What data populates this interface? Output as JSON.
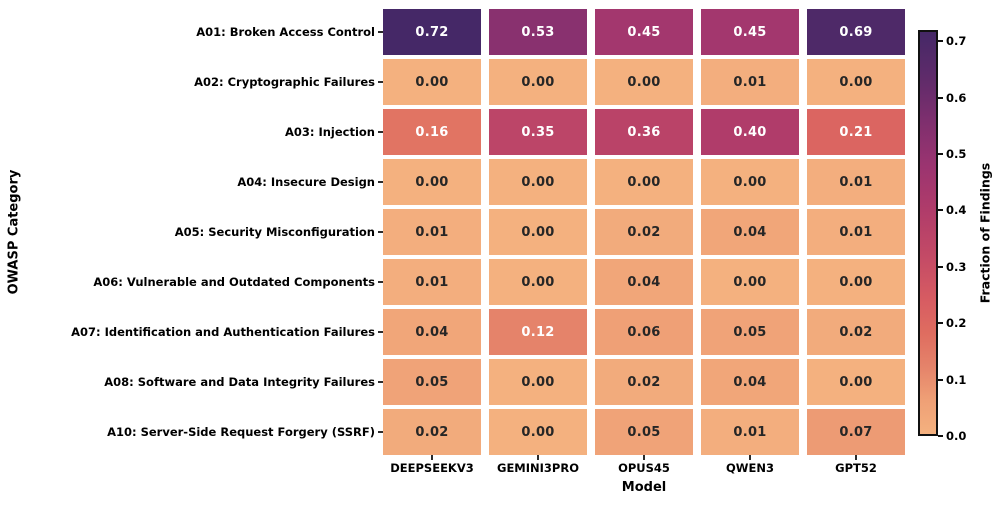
{
  "background_color": "#ffffff",
  "chart_data": {
    "type": "heatmap",
    "title": "",
    "xlabel": "Model",
    "ylabel": "OWASP Category",
    "columns": [
      "DEEPSEEKV3",
      "GEMINI3PRO",
      "OPUS45",
      "QWEN3",
      "GPT52"
    ],
    "rows": [
      "A01: Broken Access Control",
      "A02: Cryptographic Failures",
      "A03: Injection",
      "A04: Insecure Design",
      "A05: Security Misconfiguration",
      "A06: Vulnerable and Outdated Components",
      "A07: Identification and Authentication Failures",
      "A08: Software and Data Integrity Failures",
      "A10: Server-Side Request Forgery (SSRF)"
    ],
    "values": [
      [
        0.72,
        0.53,
        0.45,
        0.45,
        0.69
      ],
      [
        0.0,
        0.0,
        0.0,
        0.01,
        0.0
      ],
      [
        0.16,
        0.35,
        0.36,
        0.4,
        0.21
      ],
      [
        0.0,
        0.0,
        0.0,
        0.0,
        0.01
      ],
      [
        0.01,
        0.0,
        0.02,
        0.04,
        0.01
      ],
      [
        0.01,
        0.0,
        0.04,
        0.0,
        0.0
      ],
      [
        0.04,
        0.12,
        0.06,
        0.05,
        0.02
      ],
      [
        0.05,
        0.0,
        0.02,
        0.04,
        0.0
      ],
      [
        0.02,
        0.0,
        0.05,
        0.01,
        0.07
      ]
    ],
    "vmin": 0.0,
    "vmax": 0.72,
    "value_format_decimals": 2,
    "grid_gap_color": "#ffffff",
    "annotation": {
      "white_text_threshold": 0.1,
      "text_color_dark_cells": "#ffffff",
      "text_color_light_cells": "#262626"
    },
    "colormap": {
      "name": "flare-like",
      "stops": [
        {
          "v": 0.0,
          "c": "#f4b17f"
        },
        {
          "v": 0.06,
          "c": "#efa076"
        },
        {
          "v": 0.12,
          "c": "#e5836a"
        },
        {
          "v": 0.18,
          "c": "#df6d60"
        },
        {
          "v": 0.24,
          "c": "#d75c62"
        },
        {
          "v": 0.32,
          "c": "#c34a66"
        },
        {
          "v": 0.4,
          "c": "#b03c6a"
        },
        {
          "v": 0.48,
          "c": "#9b3470"
        },
        {
          "v": 0.56,
          "c": "#7e2f6e"
        },
        {
          "v": 0.64,
          "c": "#5e2b6a"
        },
        {
          "v": 0.72,
          "c": "#452867"
        }
      ]
    },
    "colorbar": {
      "label": "Fraction of Findings",
      "ticks": [
        {
          "v": 0.0,
          "label": "0.0"
        },
        {
          "v": 0.1,
          "label": "0.1"
        },
        {
          "v": 0.2,
          "label": "0.2"
        },
        {
          "v": 0.3,
          "label": "0.3"
        },
        {
          "v": 0.4,
          "label": "0.4"
        },
        {
          "v": 0.5,
          "label": "0.5"
        },
        {
          "v": 0.6,
          "label": "0.6"
        },
        {
          "v": 0.7,
          "label": "0.7"
        }
      ],
      "outline_color": "#111111"
    },
    "legend_position": "right",
    "grid_on": false
  }
}
